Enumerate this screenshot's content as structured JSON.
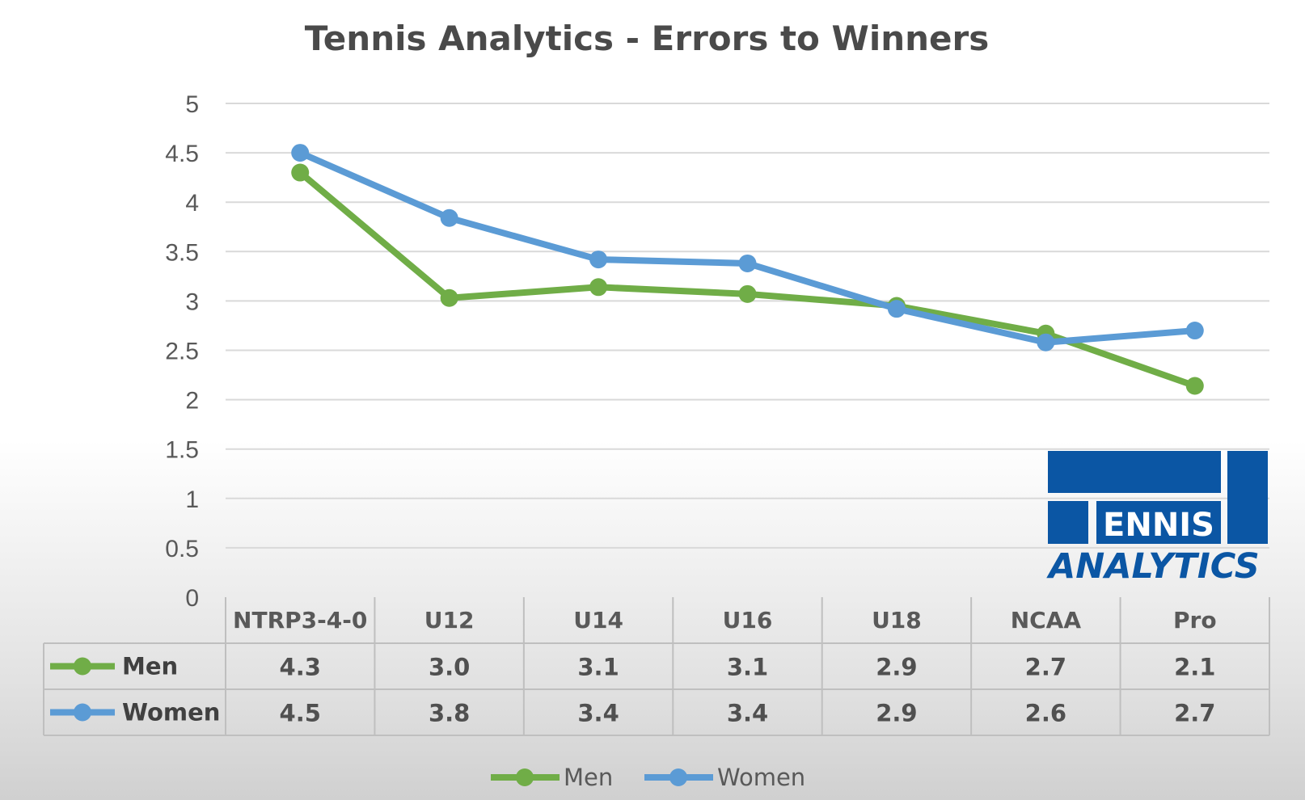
{
  "chart_data": {
    "type": "line",
    "title": "Tennis Analytics - Errors to Winners",
    "categories": [
      "NTRP3-4-0",
      "U12",
      "U14",
      "U16",
      "U18",
      "NCAA",
      "Pro"
    ],
    "series": [
      {
        "name": "Men",
        "color": "#70ad47",
        "values": [
          4.3,
          3.03,
          3.14,
          3.07,
          2.95,
          2.67,
          2.14
        ],
        "table_values": [
          "4.3",
          "3.0",
          "3.1",
          "3.1",
          "2.9",
          "2.7",
          "2.1"
        ]
      },
      {
        "name": "Women",
        "color": "#5b9bd5",
        "values": [
          4.5,
          3.84,
          3.42,
          3.38,
          2.92,
          2.58,
          2.7
        ],
        "table_values": [
          "4.5",
          "3.8",
          "3.4",
          "3.4",
          "2.9",
          "2.6",
          "2.7"
        ]
      }
    ],
    "y_ticks": [
      "0",
      "0.5",
      "1",
      "1.5",
      "2",
      "2.5",
      "3",
      "3.5",
      "4",
      "4.5",
      "5"
    ],
    "ylim": [
      0,
      5
    ],
    "grid": true,
    "legend_position": "bottom",
    "data_table": true
  },
  "logo": {
    "text_top": "ENNIS",
    "text_bottom": "ANALYTICS",
    "color": "#0b56a4"
  }
}
